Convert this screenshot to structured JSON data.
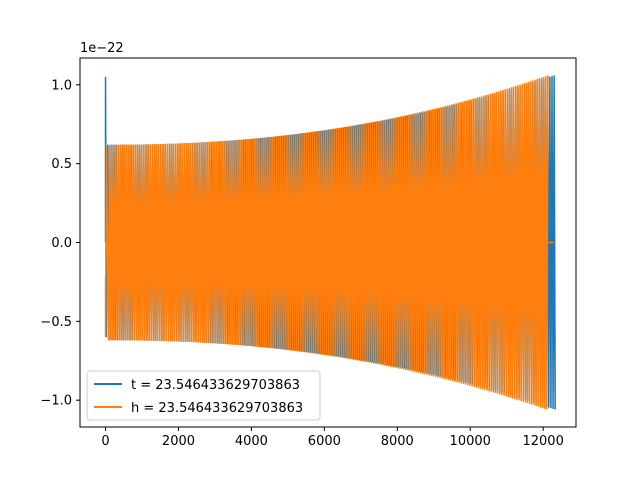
{
  "chart_data": {
    "type": "line",
    "title": "",
    "xlabel": "",
    "ylabel": "",
    "y_scale_label": "1e−22",
    "xlim": [
      -700,
      12900
    ],
    "ylim": [
      -1.17,
      1.17
    ],
    "x_ticks": [
      0,
      2000,
      4000,
      6000,
      8000,
      10000,
      12000
    ],
    "x_tick_labels": [
      "0",
      "2000",
      "4000",
      "6000",
      "8000",
      "10000",
      "12000"
    ],
    "y_ticks": [
      1.0,
      0.5,
      0.0,
      -0.5,
      -1.0
    ],
    "y_tick_labels": [
      "1.0",
      "0.5",
      "0.0",
      "−0.5",
      "−1.0"
    ],
    "grid": false,
    "legend_position": "lower-left",
    "series": [
      {
        "name": "t = 23.546433629703863",
        "color": "#1f77b4",
        "x_start": 0,
        "x_end": 12300,
        "start_spike": 1.05,
        "amplitude_start": 0.62,
        "amplitude_end": 1.06,
        "cycles": 210
      },
      {
        "name": "h = 23.546433629703863",
        "color": "#ff7f0e",
        "x_start": 0,
        "x_end": 12100,
        "tail_end": 12300,
        "amplitude_start": 0.62,
        "amplitude_end": 1.06,
        "cycles": 205
      }
    ]
  }
}
